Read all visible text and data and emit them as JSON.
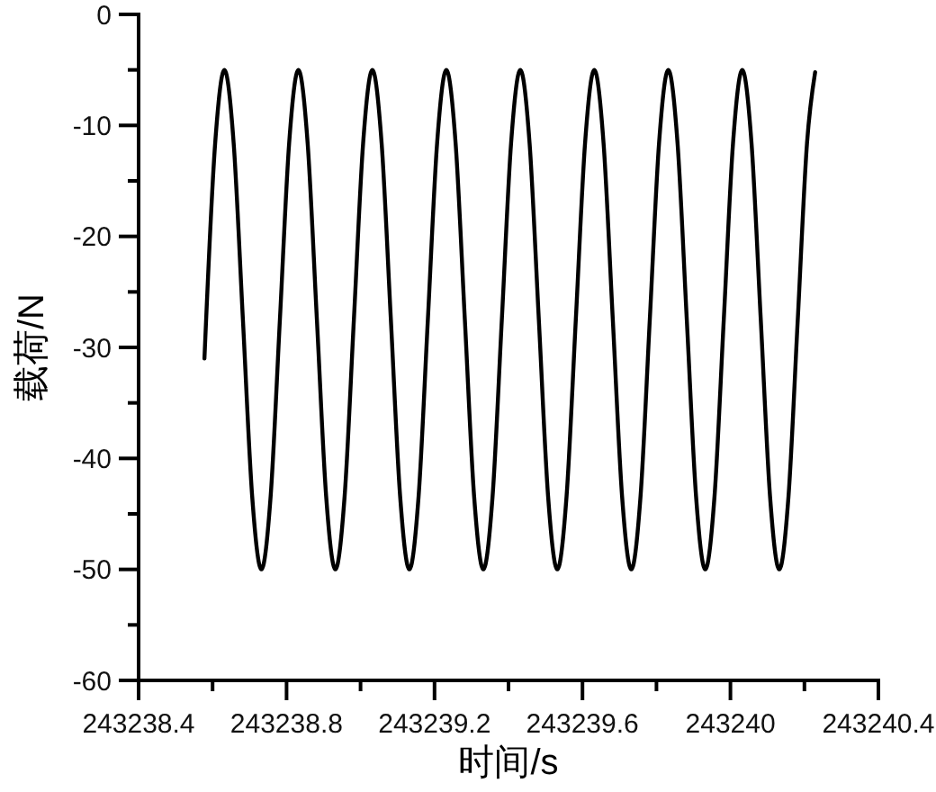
{
  "chart_data": {
    "type": "line",
    "xlabel": "时间/s",
    "ylabel": "载荷/N",
    "xlim": [
      243238.4,
      243240.4
    ],
    "xticks": [
      243238.4,
      {
        "value": 243238.6,
        "label": null
      },
      243238.8,
      {
        "value": 243239,
        "label": null
      },
      243239.2,
      {
        "value": 243239.4,
        "label": null
      },
      243239.6,
      {
        "value": 243239.8,
        "label": null
      },
      243240,
      {
        "value": 243240.2,
        "label": null
      },
      243240.4
    ],
    "ylim": [
      -60,
      0
    ],
    "yticks": [
      0,
      {
        "value": -5,
        "label": null
      },
      -10,
      {
        "value": -15,
        "label": null
      },
      -20,
      {
        "value": -25,
        "label": null
      },
      -30,
      {
        "value": -35,
        "label": null
      },
      -40,
      {
        "value": -45,
        "label": null
      },
      -50,
      {
        "value": -55,
        "label": null
      },
      -60
    ],
    "series": [
      {
        "color": "#000000",
        "x": [
          243238.578,
          243238.607,
          243238.632,
          243238.657,
          243238.682,
          243238.707,
          243238.732,
          243238.757,
          243238.782,
          243238.807,
          243238.832,
          243238.857,
          243238.882,
          243238.907,
          243238.932,
          243238.957,
          243238.982,
          243239.007,
          243239.032,
          243239.057,
          243239.082,
          243239.107,
          243239.132,
          243239.157,
          243239.182,
          243239.207,
          243239.232,
          243239.257,
          243239.282,
          243239.307,
          243239.332,
          243239.357,
          243239.382,
          243239.407,
          243239.432,
          243239.457,
          243239.482,
          243239.507,
          243239.532,
          243239.557,
          243239.582,
          243239.607,
          243239.632,
          243239.657,
          243239.682,
          243239.707,
          243239.732,
          243239.757,
          243239.782,
          243239.807,
          243239.832,
          243239.857,
          243239.882,
          243239.907,
          243239.932,
          243239.957,
          243239.982,
          243240.007,
          243240.032,
          243240.057,
          243240.082,
          243240.107,
          243240.132,
          243240.157,
          243240.182,
          243240.207,
          243240.229
        ],
        "values": [
          -31,
          -11.6,
          -5,
          -11.6,
          -27.5,
          -43.4,
          -50,
          -43.4,
          -27.5,
          -11.6,
          -5,
          -11.6,
          -27.5,
          -43.4,
          -50,
          -43.4,
          -27.5,
          -11.6,
          -5,
          -11.6,
          -27.5,
          -43.4,
          -50,
          -43.4,
          -27.5,
          -11.6,
          -5,
          -11.6,
          -27.5,
          -43.4,
          -50,
          -43.4,
          -27.5,
          -11.6,
          -5,
          -11.6,
          -27.5,
          -43.4,
          -50,
          -43.4,
          -27.5,
          -11.6,
          -5,
          -11.6,
          -27.5,
          -43.4,
          -50,
          -43.4,
          -27.5,
          -11.6,
          -5,
          -11.6,
          -27.5,
          -43.4,
          -50,
          -43.4,
          -27.5,
          -11.6,
          -5,
          -11.6,
          -27.5,
          -43.4,
          -50,
          -43.4,
          -27.5,
          -11.6,
          -5.2
        ]
      }
    ]
  }
}
